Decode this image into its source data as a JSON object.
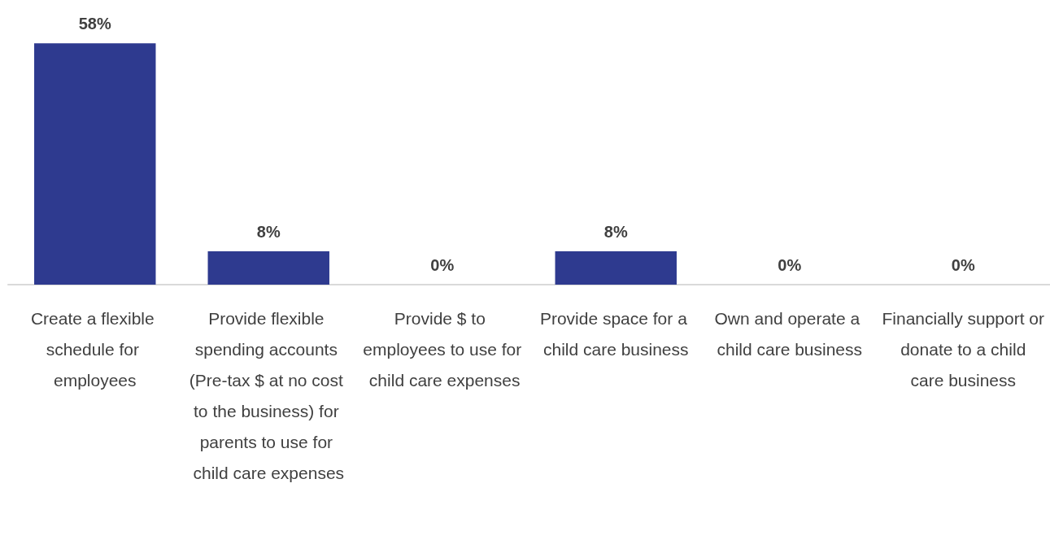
{
  "chart_data": {
    "type": "bar",
    "categories": [
      "Create a flexible schedule for employees",
      "Provide flexible spending accounts (Pre-tax $ at no cost to the business) for parents to use for child care expenses",
      "Provide $ to employees to use for child care expenses",
      "Provide space for a child care business",
      "Own and operate a child care business",
      "Financially support or donate to a child care business"
    ],
    "values": [
      58,
      8,
      0,
      8,
      0,
      0
    ],
    "value_labels": [
      "58%",
      "8%",
      "0%",
      "8%",
      "0%",
      "0%"
    ],
    "color": "#2e3a8f"
  }
}
